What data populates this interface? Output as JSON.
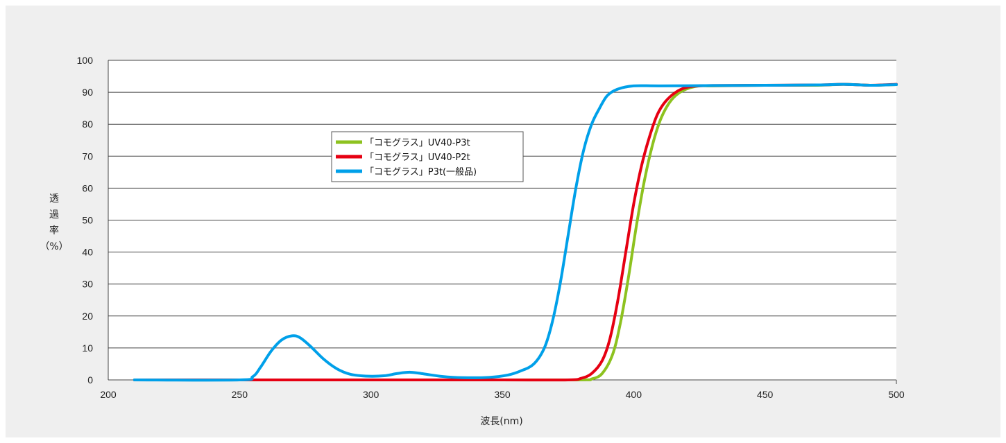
{
  "chart_data": {
    "type": "line",
    "title": "",
    "xlabel": "波長(nm)",
    "ylabel_lines": [
      "透",
      "過",
      "率",
      "（%）"
    ],
    "xlim": [
      200,
      500
    ],
    "ylim": [
      0,
      100
    ],
    "xticks": [
      200,
      250,
      300,
      350,
      400,
      450,
      500
    ],
    "yticks": [
      0,
      10,
      20,
      30,
      40,
      50,
      60,
      70,
      80,
      90,
      100
    ],
    "grid": "horizontal",
    "legend_position": "upper-left-center",
    "series": [
      {
        "name": "「コモグラス」UV40-P3t",
        "color": "#8dc21f",
        "points": [
          [
            210,
            0
          ],
          [
            250,
            0
          ],
          [
            300,
            0
          ],
          [
            350,
            0
          ],
          [
            380,
            0
          ],
          [
            384,
            0.3
          ],
          [
            388,
            2
          ],
          [
            392,
            8
          ],
          [
            395,
            18
          ],
          [
            398,
            32
          ],
          [
            401,
            48
          ],
          [
            404,
            62
          ],
          [
            407,
            73
          ],
          [
            410,
            81
          ],
          [
            413,
            86
          ],
          [
            416,
            89
          ],
          [
            420,
            91
          ],
          [
            425,
            92
          ],
          [
            430,
            92
          ],
          [
            450,
            92.2
          ],
          [
            470,
            92.2
          ],
          [
            480,
            92.5
          ],
          [
            490,
            92.2
          ],
          [
            500,
            92.4
          ]
        ]
      },
      {
        "name": "「コモグラス」UV40-P2t",
        "color": "#e60012",
        "points": [
          [
            210,
            0
          ],
          [
            250,
            0
          ],
          [
            300,
            0
          ],
          [
            350,
            0
          ],
          [
            375,
            0
          ],
          [
            380,
            0.5
          ],
          [
            384,
            2
          ],
          [
            388,
            6
          ],
          [
            391,
            13
          ],
          [
            394,
            25
          ],
          [
            397,
            40
          ],
          [
            400,
            55
          ],
          [
            403,
            67
          ],
          [
            406,
            76
          ],
          [
            409,
            83
          ],
          [
            412,
            87
          ],
          [
            416,
            90
          ],
          [
            420,
            91.5
          ],
          [
            425,
            92
          ],
          [
            430,
            92.1
          ],
          [
            450,
            92.2
          ],
          [
            470,
            92.3
          ],
          [
            480,
            92.5
          ],
          [
            490,
            92.2
          ],
          [
            500,
            92.5
          ]
        ]
      },
      {
        "name": "「コモグラス」P3t(一般品)",
        "color": "#00a0e9",
        "points": [
          [
            210,
            0
          ],
          [
            250,
            0
          ],
          [
            255,
            1
          ],
          [
            258,
            4
          ],
          [
            262,
            9
          ],
          [
            266,
            12.5
          ],
          [
            270,
            13.8
          ],
          [
            273,
            13.2
          ],
          [
            277,
            10.5
          ],
          [
            282,
            6.5
          ],
          [
            287,
            3.5
          ],
          [
            292,
            1.8
          ],
          [
            298,
            1.2
          ],
          [
            305,
            1.3
          ],
          [
            310,
            2
          ],
          [
            315,
            2.4
          ],
          [
            320,
            1.9
          ],
          [
            327,
            1.1
          ],
          [
            335,
            0.7
          ],
          [
            345,
            0.8
          ],
          [
            352,
            1.5
          ],
          [
            357,
            2.8
          ],
          [
            362,
            5
          ],
          [
            366,
            10
          ],
          [
            369,
            18
          ],
          [
            372,
            30
          ],
          [
            375,
            45
          ],
          [
            378,
            60
          ],
          [
            381,
            72
          ],
          [
            384,
            80
          ],
          [
            387,
            85
          ],
          [
            390,
            89
          ],
          [
            394,
            91
          ],
          [
            400,
            92
          ],
          [
            410,
            92
          ],
          [
            430,
            92.1
          ],
          [
            450,
            92.2
          ],
          [
            470,
            92.3
          ],
          [
            480,
            92.5
          ],
          [
            490,
            92.2
          ],
          [
            500,
            92.4
          ]
        ]
      }
    ]
  }
}
